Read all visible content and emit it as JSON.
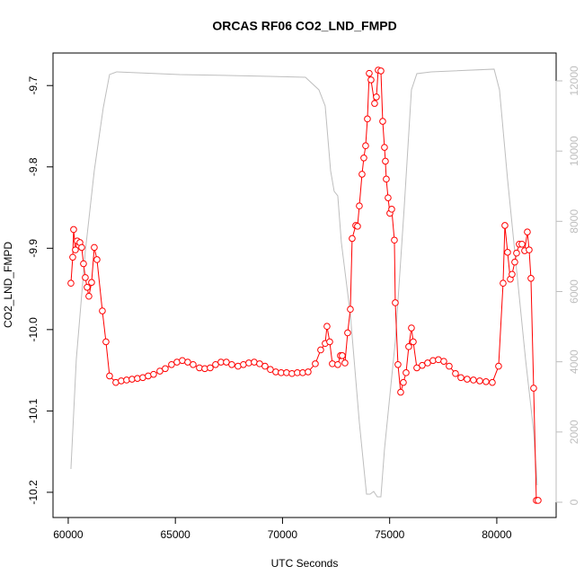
{
  "chart_data": {
    "type": "line",
    "title": "ORCAS RF06 CO2_LND_FMPD",
    "xlabel": "UTC Seconds",
    "ylabel": "CO2_LND_FMPD",
    "xlim": [
      59290,
      82770
    ],
    "ylim": [
      -10.231,
      -9.66
    ],
    "y2lim": [
      -435,
      12793
    ],
    "xticks": [
      60000,
      65000,
      70000,
      75000,
      80000
    ],
    "yticks": [
      -9.7,
      -9.8,
      -9.9,
      {
        "value": -10,
        "label": "-10.0"
      },
      -10.1,
      -10.2
    ],
    "y2ticks": [
      0,
      2000,
      4000,
      6000,
      8000,
      10000,
      12000
    ],
    "series": [
      {
        "color": "#ff0000",
        "marker": "circle",
        "x": [
          60126,
          60210,
          60252,
          60335,
          60419,
          60545,
          60629,
          60713,
          60797,
          60881,
          60964,
          61090,
          61216,
          61342,
          61593,
          61761,
          61929,
          62222,
          62474,
          62725,
          62977,
          63229,
          63480,
          63732,
          63983,
          64277,
          64528,
          64822,
          65074,
          65325,
          65577,
          65828,
          66122,
          66373,
          66625,
          66877,
          67128,
          67380,
          67631,
          67925,
          68176,
          68428,
          68680,
          68931,
          69183,
          69434,
          69686,
          69937,
          70189,
          70441,
          70692,
          70944,
          71195,
          71531,
          71782,
          71992,
          72076,
          72202,
          72327,
          72579,
          72705,
          72789,
          72914,
          73040,
          73166,
          73250,
          73418,
          73501,
          73585,
          73711,
          73795,
          73879,
          73963,
          74047,
          74130,
          74298,
          74382,
          74466,
          74592,
          74676,
          74759,
          74801,
          74843,
          74927,
          75011,
          75095,
          75221,
          75263,
          75388,
          75514,
          75640,
          75766,
          75891,
          76017,
          76101,
          76269,
          76520,
          76772,
          77024,
          77275,
          77527,
          77778,
          78072,
          78324,
          78617,
          78910,
          79204,
          79497,
          79791,
          80084,
          80294,
          80378,
          80504,
          80630,
          80713,
          80839,
          80923,
          81049,
          81175,
          81300,
          81426,
          81510,
          81594,
          81720,
          81846,
          81929
        ],
        "values": [
          -9.943,
          -9.911,
          -9.877,
          -9.902,
          -9.891,
          -9.893,
          -9.899,
          -9.919,
          -9.936,
          -9.948,
          -9.959,
          -9.942,
          -9.899,
          -9.914,
          -9.977,
          -10.015,
          -10.057,
          -10.065,
          -10.063,
          -10.062,
          -10.061,
          -10.06,
          -10.059,
          -10.057,
          -10.055,
          -10.051,
          -10.048,
          -10.043,
          -10.04,
          -10.038,
          -10.04,
          -10.043,
          -10.047,
          -10.048,
          -10.047,
          -10.043,
          -10.04,
          -10.04,
          -10.043,
          -10.045,
          -10.043,
          -10.041,
          -10.04,
          -10.042,
          -10.045,
          -10.049,
          -10.052,
          -10.053,
          -10.053,
          -10.054,
          -10.053,
          -10.053,
          -10.052,
          -10.042,
          -10.025,
          -10.017,
          -9.996,
          -10.015,
          -10.042,
          -10.043,
          -10.032,
          -10.032,
          -10.041,
          -10.004,
          -9.975,
          -9.888,
          -9.872,
          -9.873,
          -9.848,
          -9.809,
          -9.789,
          -9.774,
          -9.741,
          -9.685,
          -9.693,
          -9.722,
          -9.714,
          -9.681,
          -9.682,
          -9.744,
          -9.776,
          -9.793,
          -9.815,
          -9.838,
          -9.857,
          -9.852,
          -9.89,
          -9.967,
          -10.043,
          -10.077,
          -10.065,
          -10.053,
          -10.021,
          -9.998,
          -10.015,
          -10.047,
          -10.044,
          -10.041,
          -10.038,
          -10.037,
          -10.039,
          -10.045,
          -10.054,
          -10.059,
          -10.061,
          -10.062,
          -10.063,
          -10.064,
          -10.065,
          -10.045,
          -9.943,
          -9.872,
          -9.905,
          -9.938,
          -9.932,
          -9.917,
          -9.906,
          -9.895,
          -9.895,
          -9.903,
          -9.88,
          -9.902,
          -9.937,
          -10.072,
          -10.21,
          -10.21
        ]
      },
      {
        "color": "#bebebe",
        "axis": "y2",
        "x": [
          60126,
          60377,
          60797,
          61216,
          61635,
          61929,
          62264,
          65199,
          69392,
          71070,
          71698,
          71992,
          72244,
          72411,
          72579,
          72747,
          73166,
          73585,
          73921,
          74088,
          74256,
          74424,
          74592,
          74759,
          75263,
          75682,
          76017,
          76269,
          76940,
          79875,
          80126,
          80504,
          80923,
          81342,
          81720,
          81888
        ],
        "values": [
          947,
          4069,
          7139,
          9442,
          11233,
          12180,
          12257,
          12180,
          12129,
          12103,
          11745,
          11285,
          9442,
          8854,
          8726,
          7395,
          5348,
          2277,
          230,
          230,
          307,
          154,
          154,
          1510,
          4580,
          8419,
          11745,
          12206,
          12257,
          12334,
          11745,
          9186,
          6627,
          4069,
          2021,
          486
        ]
      }
    ]
  }
}
